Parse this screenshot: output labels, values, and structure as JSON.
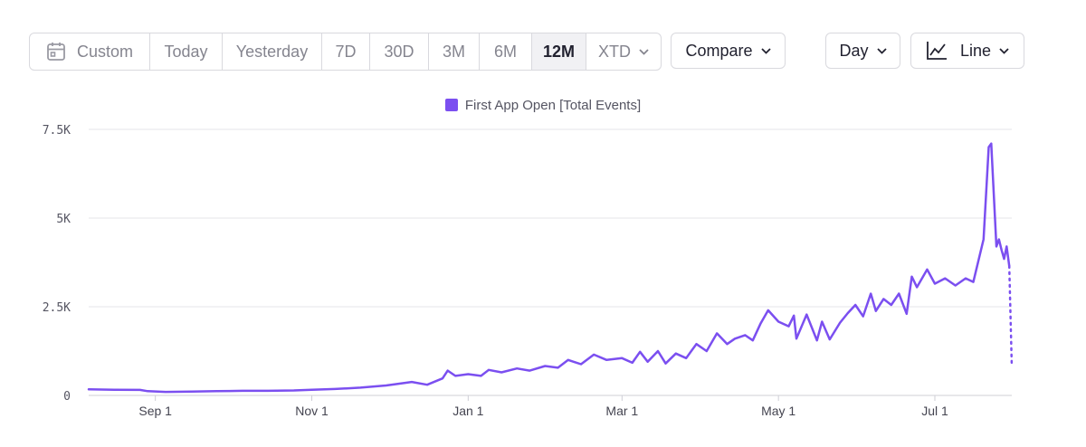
{
  "toolbar": {
    "ranges": [
      "Custom",
      "Today",
      "Yesterday",
      "7D",
      "30D",
      "3M",
      "6M",
      "12M",
      "XTD"
    ],
    "active_range": "12M",
    "compare_label": "Compare",
    "granularity_label": "Day",
    "chart_type_label": "Line",
    "icons": {
      "custom": "calendar-icon",
      "xtd": "chevron-down-icon",
      "compare": "chevron-down-icon",
      "granularity": "chevron-down-icon",
      "chart_type": "line-chart-icon"
    }
  },
  "chart_data": {
    "type": "line",
    "title": "",
    "xlabel": "",
    "ylabel": "",
    "legend_position": "top-center",
    "grid": true,
    "ylim": [
      0,
      7500
    ],
    "y_ticks": [
      {
        "value": 0,
        "label": "0"
      },
      {
        "value": 2500,
        "label": "2.5K"
      },
      {
        "value": 5000,
        "label": "5K"
      },
      {
        "value": 7500,
        "label": "7.5K"
      }
    ],
    "x_ticks": [
      {
        "date": "2023-09-01",
        "label": "Sep 1"
      },
      {
        "date": "2023-11-01",
        "label": "Nov 1"
      },
      {
        "date": "2024-01-01",
        "label": "Jan 1"
      },
      {
        "date": "2024-03-01",
        "label": "Mar 1"
      },
      {
        "date": "2024-05-01",
        "label": "May 1"
      },
      {
        "date": "2024-07-01",
        "label": "Jul 1"
      }
    ],
    "xlim": [
      "2023-08-06",
      "2024-07-31"
    ],
    "series": [
      {
        "name": "First App Open [Total Events]",
        "color": "#7b4ff0",
        "points": [
          [
            "2023-08-06",
            170
          ],
          [
            "2023-08-16",
            160
          ],
          [
            "2023-08-26",
            155
          ],
          [
            "2023-08-29",
            120
          ],
          [
            "2023-09-05",
            100
          ],
          [
            "2023-09-15",
            110
          ],
          [
            "2023-09-25",
            120
          ],
          [
            "2023-10-05",
            130
          ],
          [
            "2023-10-15",
            130
          ],
          [
            "2023-10-25",
            140
          ],
          [
            "2023-11-01",
            160
          ],
          [
            "2023-11-10",
            180
          ],
          [
            "2023-11-20",
            220
          ],
          [
            "2023-11-30",
            280
          ],
          [
            "2023-12-10",
            380
          ],
          [
            "2023-12-16",
            300
          ],
          [
            "2023-12-22",
            480
          ],
          [
            "2023-12-24",
            700
          ],
          [
            "2023-12-27",
            550
          ],
          [
            "2024-01-01",
            600
          ],
          [
            "2024-01-06",
            550
          ],
          [
            "2024-01-09",
            720
          ],
          [
            "2024-01-14",
            650
          ],
          [
            "2024-01-20",
            760
          ],
          [
            "2024-01-25",
            700
          ],
          [
            "2024-01-31",
            830
          ],
          [
            "2024-02-05",
            780
          ],
          [
            "2024-02-09",
            1000
          ],
          [
            "2024-02-14",
            880
          ],
          [
            "2024-02-19",
            1150
          ],
          [
            "2024-02-24",
            1000
          ],
          [
            "2024-03-01",
            1050
          ],
          [
            "2024-03-05",
            920
          ],
          [
            "2024-03-08",
            1230
          ],
          [
            "2024-03-11",
            950
          ],
          [
            "2024-03-15",
            1250
          ],
          [
            "2024-03-18",
            900
          ],
          [
            "2024-03-22",
            1180
          ],
          [
            "2024-03-26",
            1050
          ],
          [
            "2024-03-30",
            1450
          ],
          [
            "2024-04-03",
            1250
          ],
          [
            "2024-04-07",
            1750
          ],
          [
            "2024-04-11",
            1450
          ],
          [
            "2024-04-14",
            1600
          ],
          [
            "2024-04-18",
            1700
          ],
          [
            "2024-04-21",
            1550
          ],
          [
            "2024-04-24",
            2020
          ],
          [
            "2024-04-27",
            2400
          ],
          [
            "2024-05-01",
            2080
          ],
          [
            "2024-05-05",
            1950
          ],
          [
            "2024-05-07",
            2250
          ],
          [
            "2024-05-08",
            1600
          ],
          [
            "2024-05-12",
            2280
          ],
          [
            "2024-05-16",
            1550
          ],
          [
            "2024-05-18",
            2080
          ],
          [
            "2024-05-21",
            1580
          ],
          [
            "2024-05-25",
            2050
          ],
          [
            "2024-05-28",
            2320
          ],
          [
            "2024-05-31",
            2550
          ],
          [
            "2024-06-03",
            2230
          ],
          [
            "2024-06-06",
            2870
          ],
          [
            "2024-06-08",
            2380
          ],
          [
            "2024-06-11",
            2720
          ],
          [
            "2024-06-14",
            2550
          ],
          [
            "2024-06-17",
            2870
          ],
          [
            "2024-06-20",
            2300
          ],
          [
            "2024-06-22",
            3350
          ],
          [
            "2024-06-24",
            3050
          ],
          [
            "2024-06-28",
            3550
          ],
          [
            "2024-07-01",
            3150
          ],
          [
            "2024-07-05",
            3300
          ],
          [
            "2024-07-09",
            3100
          ],
          [
            "2024-07-13",
            3300
          ],
          [
            "2024-07-16",
            3200
          ],
          [
            "2024-07-20",
            4400
          ],
          [
            "2024-07-22",
            7000
          ],
          [
            "2024-07-23",
            7100
          ],
          [
            "2024-07-25",
            4200
          ],
          [
            "2024-07-26",
            4400
          ],
          [
            "2024-07-27",
            4100
          ],
          [
            "2024-07-28",
            3850
          ],
          [
            "2024-07-29",
            4200
          ],
          [
            "2024-07-30",
            3650
          ]
        ],
        "incomplete_segment": [
          [
            "2024-07-30",
            3650
          ],
          [
            "2024-07-31",
            800
          ]
        ]
      }
    ]
  }
}
